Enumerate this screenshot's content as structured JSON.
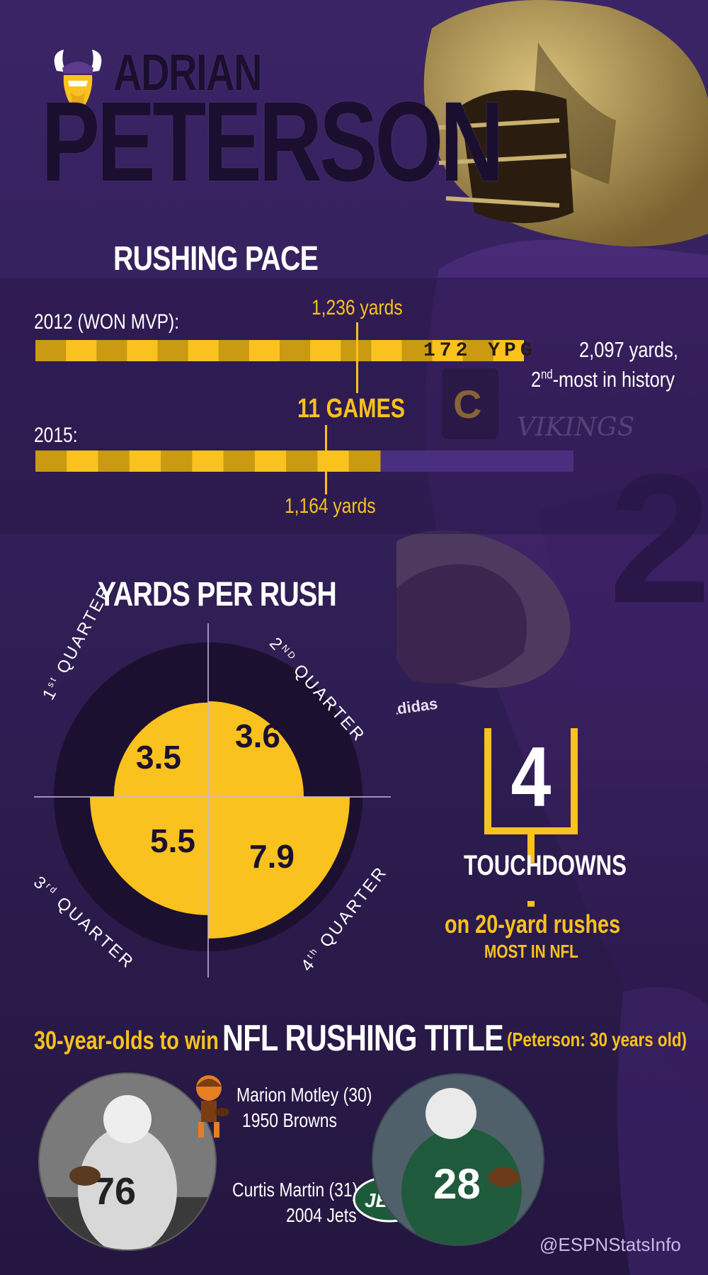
{
  "header": {
    "first_name": "ADRIAN",
    "last_name": "PETERSON"
  },
  "rushing_pace": {
    "title": "RUSHING PACE",
    "row_2012_label": "2012 (WON MVP):",
    "row_2015_label": "2015:",
    "callout_2012": "1,236 yards",
    "callout_games": "11 GAMES",
    "callout_2015": "1,164 yards",
    "ypg_label": "172 YPG",
    "total_2012_line1": "2,097 yards,",
    "total_2012_ordinal": "2",
    "total_2012_sup": "nd",
    "total_2012_line2_rest": "-most in history"
  },
  "yards_per_rush": {
    "title": "YARDS PER RUSH",
    "q1": {
      "num": "1",
      "sup": "st",
      "word": "QUARTER"
    },
    "q2": {
      "num": "2",
      "sup": "ND",
      "word": "QUARTER"
    },
    "q3": {
      "num": "3",
      "sup": "rd",
      "word": "QUARTER"
    },
    "q4": {
      "num": "4",
      "sup": "th",
      "word": "QUARTER"
    }
  },
  "touchdowns": {
    "count": "4",
    "label": "TOUCHDOWNS",
    "sub1": "on 20-yard rushes",
    "sub2": "MOST IN NFL"
  },
  "rushing_title": {
    "lead": "30-year-olds to win",
    "main": "NFL RUSHING TITLE",
    "note": "(Peterson: 30 years old)",
    "player1_line1": "Marion Motley (30)",
    "player1_line2": "1950 Browns",
    "player2_line1": "Curtis Martin (31)",
    "player2_line2": "2004 Jets",
    "jets_logo_text": "JETS"
  },
  "credit": "@ESPNStatsInfo",
  "colors": {
    "gold": "#f9c21e",
    "gold_dark": "#c99a12",
    "purple": "#3b2466",
    "purple_track": "#4a2f80",
    "quadrant_dark": "#1c1030"
  },
  "chart_data": [
    {
      "type": "bar",
      "title": "RUSHING PACE",
      "categories": [
        "2012 (WON MVP):",
        "2015:"
      ],
      "series": [
        {
          "name": "1,236 yards",
          "values": [
            1236,
            1164
          ]
        }
      ],
      "annotations": [
        "1,236 yards",
        "11 GAMES",
        "1,164 yards",
        "172 YPG",
        "2,097 yards, 2nd-most in history"
      ],
      "season_total_2012": 2097,
      "games_marker": 11,
      "ypg_2012": 172,
      "season_total_games": 16
    },
    {
      "type": "pie",
      "title": "YARDS PER RUSH",
      "categories": [
        "1st QUARTER",
        "2ND QUARTER",
        "3rd QUARTER",
        "4th QUARTER"
      ],
      "values": [
        3.5,
        3.6,
        5.5,
        7.9
      ],
      "max_value": 7.9
    }
  ]
}
